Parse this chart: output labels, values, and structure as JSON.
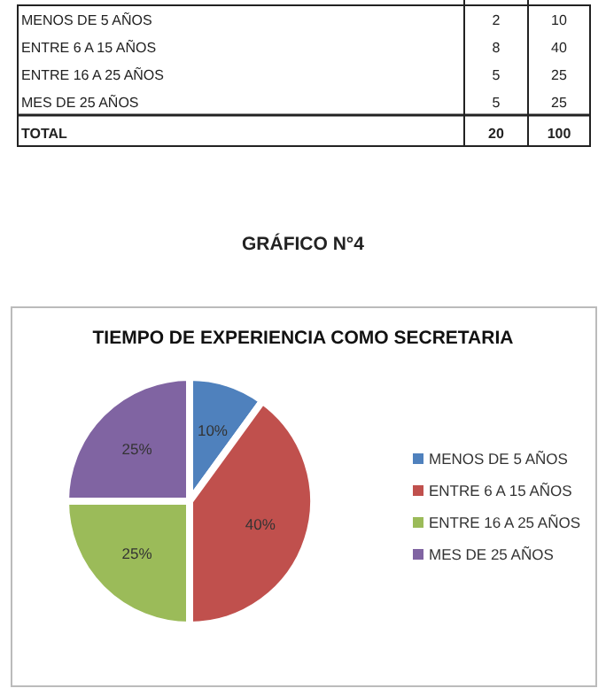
{
  "chart_data": [
    {
      "type": "other",
      "categories": [
        "MENOS DE 5 AÑOS",
        "ENTRE 6 A 15 AÑOS",
        "ENTRE 16 A 25 AÑOS",
        "MES DE 25 AÑOS",
        "TOTAL"
      ],
      "series": [
        {
          "values": [
            2,
            8,
            5,
            5,
            20
          ]
        },
        {
          "values": [
            10,
            40,
            25,
            25,
            100
          ]
        }
      ],
      "data_labels": true
    },
    {
      "type": "pie",
      "title": "TIEMPO DE EXPERIENCIA COMO SECRETARIA",
      "annotations": [
        "GRÁFICO N°4"
      ],
      "categories": [
        "MENOS DE 5 AÑOS",
        "ENTRE 6 A 15 AÑOS",
        "ENTRE 16 A 25 AÑOS",
        "MES DE 25 AÑOS"
      ],
      "values": [
        10,
        40,
        25,
        25
      ],
      "value_labels": [
        "10%",
        "40%",
        "25%",
        "25%"
      ],
      "colors": [
        "#4f81bd",
        "#c0504d",
        "#9bbb59",
        "#8064a2"
      ],
      "legend": "right"
    }
  ]
}
